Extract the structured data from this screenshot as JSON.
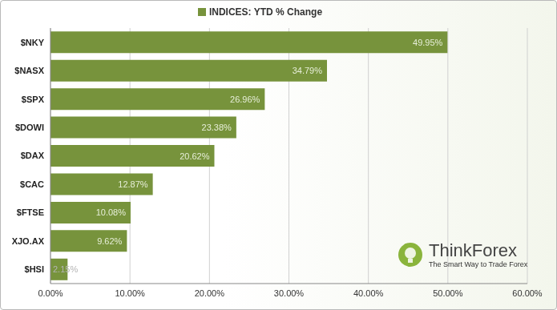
{
  "chart_data": {
    "type": "bar",
    "orientation": "horizontal",
    "categories": [
      "$NKY",
      "$NASX",
      "$SPX",
      "$DOWI",
      "$DAX",
      "$CAC",
      "$FTSE",
      "XJO.AX",
      "$HSI"
    ],
    "series": [
      {
        "name": "INDICES: YTD % Change",
        "color": "#77933c",
        "values": [
          49.95,
          34.79,
          26.96,
          23.38,
          20.62,
          12.87,
          10.08,
          9.62,
          2.15
        ],
        "value_labels": [
          "49.95%",
          "34.79%",
          "26.96%",
          "23.38%",
          "20.62%",
          "12.87%",
          "10.08%",
          "9.62%",
          "2.15%"
        ]
      }
    ],
    "xlim": [
      0,
      60
    ],
    "xticks": [
      {
        "value": 0,
        "label": "0.00%"
      },
      {
        "value": 10,
        "label": "10.00%"
      },
      {
        "value": 20,
        "label": "20.00%"
      },
      {
        "value": 30,
        "label": "30.00%"
      },
      {
        "value": 40,
        "label": "40.00%"
      },
      {
        "value": 50,
        "label": "50.00%"
      },
      {
        "value": 60,
        "label": "60.00%"
      }
    ],
    "grid": true,
    "legend": "top",
    "data_labels": true,
    "annotations": [
      "ThinkForex",
      "The Smart Way to Trade Forex"
    ]
  }
}
